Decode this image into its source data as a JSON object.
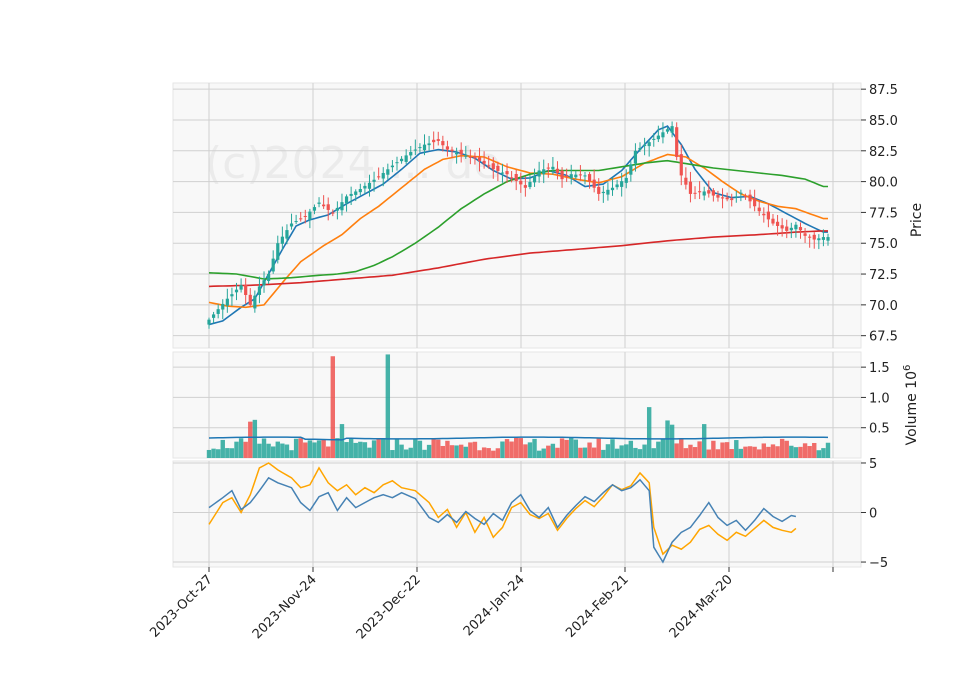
{
  "chart_data": {
    "type": "candlestick",
    "watermark": "(c)2024 ... de",
    "x_tick_labels": [
      "2023-Oct-27",
      "2023-Nov-24",
      "2023-Dec-22",
      "2024-Jan-24",
      "2024-Feb-21",
      "2024-Mar-20"
    ],
    "price_panel": {
      "ylabel": "Price",
      "ylim": [
        66.5,
        88.0
      ],
      "yticks": [
        67.5,
        70.0,
        72.5,
        75.0,
        77.5,
        80.0,
        82.5,
        85.0,
        87.5
      ],
      "ytick_labels": [
        "67.5",
        "70.0",
        "72.5",
        "75.0",
        "77.5",
        "80.0",
        "82.5",
        "85.0",
        "87.5"
      ],
      "up_color": "#26a69a",
      "down_color": "#ef5350",
      "close_anchors": [
        [
          0,
          68.8
        ],
        [
          4,
          70.5
        ],
        [
          7,
          71.6
        ],
        [
          9,
          70.0
        ],
        [
          11,
          71.5
        ],
        [
          13,
          72.5
        ],
        [
          15,
          75.0
        ],
        [
          18,
          76.6
        ],
        [
          21,
          77.2
        ],
        [
          24,
          78.3
        ],
        [
          27,
          77.4
        ],
        [
          30,
          78.8
        ],
        [
          33,
          79.4
        ],
        [
          37,
          80.4
        ],
        [
          40,
          81.3
        ],
        [
          44,
          82.4
        ],
        [
          47,
          83.0
        ],
        [
          50,
          83.3
        ],
        [
          52,
          82.6
        ],
        [
          55,
          82.2
        ],
        [
          58,
          81.9
        ],
        [
          62,
          81.0
        ],
        [
          65,
          80.6
        ],
        [
          69,
          79.5
        ],
        [
          72,
          80.9
        ],
        [
          75,
          81.2
        ],
        [
          77,
          80.2
        ],
        [
          79,
          80.6
        ],
        [
          82,
          80.5
        ],
        [
          85,
          79.0
        ],
        [
          88,
          79.5
        ],
        [
          91,
          80.3
        ],
        [
          93,
          82.5
        ],
        [
          96,
          83.2
        ],
        [
          99,
          84.0
        ],
        [
          101,
          84.5
        ],
        [
          102,
          82.0
        ],
        [
          103,
          80.5
        ],
        [
          105,
          79.0
        ],
        [
          108,
          79.2
        ],
        [
          111,
          78.7
        ],
        [
          114,
          78.5
        ],
        [
          116,
          79.1
        ],
        [
          118,
          78.4
        ],
        [
          120,
          77.6
        ],
        [
          123,
          76.6
        ],
        [
          126,
          76.0
        ],
        [
          128,
          76.5
        ],
        [
          130,
          75.6
        ],
        [
          132,
          75.3
        ],
        [
          134,
          75.5
        ]
      ],
      "ma_lines": [
        {
          "color": "#1f77b4",
          "anchors": [
            [
              0,
              68.4
            ],
            [
              3,
              68.7
            ],
            [
              7,
              69.8
            ],
            [
              10,
              70.5
            ],
            [
              13,
              72.5
            ],
            [
              16,
              74.5
            ],
            [
              19,
              76.4
            ],
            [
              22,
              76.9
            ],
            [
              26,
              77.3
            ],
            [
              30,
              78.2
            ],
            [
              34,
              79.0
            ],
            [
              38,
              79.8
            ],
            [
              42,
              81.0
            ],
            [
              46,
              82.3
            ],
            [
              50,
              82.6
            ],
            [
              54,
              82.4
            ],
            [
              58,
              81.9
            ],
            [
              62,
              80.9
            ],
            [
              66,
              80.2
            ],
            [
              70,
              80.3
            ],
            [
              74,
              80.9
            ],
            [
              78,
              80.5
            ],
            [
              82,
              79.6
            ],
            [
              86,
              79.8
            ],
            [
              90,
              80.9
            ],
            [
              94,
              82.6
            ],
            [
              98,
              84.2
            ],
            [
              100,
              84.5
            ],
            [
              103,
              83.0
            ],
            [
              106,
              81.0
            ],
            [
              110,
              79.1
            ],
            [
              114,
              78.7
            ],
            [
              118,
              78.8
            ],
            [
              122,
              78.2
            ],
            [
              126,
              77.4
            ],
            [
              130,
              76.6
            ],
            [
              134,
              75.9
            ]
          ]
        },
        {
          "color": "#ff7f0e",
          "anchors": [
            [
              0,
              70.2
            ],
            [
              4,
              69.9
            ],
            [
              8,
              69.8
            ],
            [
              12,
              70.0
            ],
            [
              16,
              71.8
            ],
            [
              20,
              73.5
            ],
            [
              25,
              74.8
            ],
            [
              29,
              75.7
            ],
            [
              33,
              77.0
            ],
            [
              37,
              78.0
            ],
            [
              42,
              79.5
            ],
            [
              47,
              81.0
            ],
            [
              51,
              81.8
            ],
            [
              55,
              82.1
            ],
            [
              60,
              82.0
            ],
            [
              65,
              81.2
            ],
            [
              70,
              80.7
            ],
            [
              75,
              80.6
            ],
            [
              80,
              80.2
            ],
            [
              85,
              79.9
            ],
            [
              90,
              80.4
            ],
            [
              95,
              81.5
            ],
            [
              100,
              82.2
            ],
            [
              104,
              82.0
            ],
            [
              108,
              81.1
            ],
            [
              112,
              80.0
            ],
            [
              116,
              79.0
            ],
            [
              120,
              78.4
            ],
            [
              124,
              78.0
            ],
            [
              128,
              77.8
            ],
            [
              134,
              77.0
            ]
          ]
        },
        {
          "color": "#2ca02c",
          "anchors": [
            [
              0,
              72.6
            ],
            [
              6,
              72.5
            ],
            [
              12,
              72.1
            ],
            [
              18,
              72.2
            ],
            [
              24,
              72.4
            ],
            [
              28,
              72.5
            ],
            [
              32,
              72.7
            ],
            [
              36,
              73.2
            ],
            [
              40,
              73.9
            ],
            [
              45,
              75.0
            ],
            [
              50,
              76.3
            ],
            [
              55,
              77.8
            ],
            [
              60,
              79.0
            ],
            [
              65,
              80.0
            ],
            [
              70,
              80.6
            ],
            [
              75,
              80.9
            ],
            [
              80,
              80.9
            ],
            [
              85,
              80.9
            ],
            [
              90,
              81.2
            ],
            [
              95,
              81.5
            ],
            [
              100,
              81.7
            ],
            [
              105,
              81.4
            ],
            [
              110,
              81.1
            ],
            [
              115,
              80.9
            ],
            [
              120,
              80.7
            ],
            [
              125,
              80.5
            ],
            [
              130,
              80.2
            ],
            [
              134,
              79.6
            ]
          ]
        },
        {
          "color": "#d62728",
          "anchors": [
            [
              0,
              71.5
            ],
            [
              10,
              71.6
            ],
            [
              20,
              71.8
            ],
            [
              30,
              72.1
            ],
            [
              40,
              72.4
            ],
            [
              50,
              73.0
            ],
            [
              60,
              73.7
            ],
            [
              70,
              74.2
            ],
            [
              80,
              74.5
            ],
            [
              90,
              74.8
            ],
            [
              100,
              75.2
            ],
            [
              110,
              75.5
            ],
            [
              120,
              75.7
            ],
            [
              128,
              75.9
            ],
            [
              134,
              76.0
            ]
          ]
        }
      ]
    },
    "volume_panel": {
      "ylabel": "Volume  10^6",
      "ylim": [
        0,
        1.75
      ],
      "yticks": [
        0.5,
        1.0,
        1.5
      ],
      "ytick_labels": [
        "0.5",
        "1.0",
        "1.5"
      ],
      "ma_color": "#1f77b4",
      "ma_value": 0.33,
      "spikes": [
        [
          9,
          0.6
        ],
        [
          10,
          0.63
        ],
        [
          27,
          1.68
        ],
        [
          29,
          0.56
        ],
        [
          39,
          1.71
        ],
        [
          96,
          0.84
        ],
        [
          100,
          0.62
        ],
        [
          101,
          0.55
        ],
        [
          108,
          0.56
        ]
      ]
    },
    "oscillator_panel": {
      "ylim": [
        -5.5,
        5.2
      ],
      "yticks": [
        -5,
        0,
        5
      ],
      "ytick_labels": [
        "−5",
        "0",
        "5"
      ],
      "blue_color": "#4682b4",
      "orange_color": "#ffa500",
      "blue_anchors": [
        [
          0,
          0.5
        ],
        [
          3,
          1.5
        ],
        [
          5,
          2.2
        ],
        [
          7,
          0.3
        ],
        [
          9,
          1.0
        ],
        [
          11,
          2.2
        ],
        [
          13,
          3.5
        ],
        [
          15,
          3.0
        ],
        [
          18,
          2.5
        ],
        [
          20,
          1.0
        ],
        [
          22,
          0.2
        ],
        [
          24,
          1.6
        ],
        [
          26,
          2.0
        ],
        [
          28,
          0.2
        ],
        [
          30,
          1.5
        ],
        [
          32,
          0.5
        ],
        [
          34,
          1.0
        ],
        [
          36,
          1.5
        ],
        [
          38,
          1.8
        ],
        [
          40,
          1.5
        ],
        [
          42,
          2.0
        ],
        [
          45,
          1.4
        ],
        [
          48,
          -0.5
        ],
        [
          50,
          -1.0
        ],
        [
          52,
          -0.2
        ],
        [
          54,
          -1.0
        ],
        [
          56,
          0.1
        ],
        [
          58,
          -0.6
        ],
        [
          60,
          -1.2
        ],
        [
          62,
          -0.1
        ],
        [
          64,
          -0.8
        ],
        [
          66,
          1.0
        ],
        [
          68,
          1.8
        ],
        [
          70,
          0.2
        ],
        [
          72,
          -0.5
        ],
        [
          74,
          0.5
        ],
        [
          76,
          -1.5
        ],
        [
          78,
          -0.3
        ],
        [
          80,
          0.7
        ],
        [
          82,
          1.6
        ],
        [
          84,
          1.1
        ],
        [
          86,
          2.0
        ],
        [
          88,
          2.8
        ],
        [
          90,
          2.2
        ],
        [
          92,
          2.5
        ],
        [
          94,
          3.3
        ],
        [
          96,
          2.2
        ],
        [
          97,
          -3.5
        ],
        [
          99,
          -5.0
        ],
        [
          101,
          -3.0
        ],
        [
          103,
          -2.0
        ],
        [
          105,
          -1.5
        ],
        [
          107,
          -0.3
        ],
        [
          109,
          1.0
        ],
        [
          111,
          -0.5
        ],
        [
          113,
          -1.3
        ],
        [
          115,
          -0.8
        ],
        [
          117,
          -1.8
        ],
        [
          119,
          -0.8
        ],
        [
          121,
          0.4
        ],
        [
          123,
          -0.4
        ],
        [
          125,
          -0.9
        ],
        [
          127,
          -0.3
        ],
        [
          128,
          -0.4
        ]
      ],
      "orange_anchors": [
        [
          0,
          -1.2
        ],
        [
          3,
          1.0
        ],
        [
          5,
          1.5
        ],
        [
          7,
          0.0
        ],
        [
          9,
          1.8
        ],
        [
          11,
          4.5
        ],
        [
          13,
          5.0
        ],
        [
          15,
          4.3
        ],
        [
          18,
          3.5
        ],
        [
          20,
          2.5
        ],
        [
          22,
          2.8
        ],
        [
          24,
          4.5
        ],
        [
          26,
          3.0
        ],
        [
          28,
          2.2
        ],
        [
          30,
          2.8
        ],
        [
          32,
          1.8
        ],
        [
          34,
          2.5
        ],
        [
          36,
          2.0
        ],
        [
          38,
          2.8
        ],
        [
          40,
          3.2
        ],
        [
          42,
          2.5
        ],
        [
          45,
          2.2
        ],
        [
          48,
          1.0
        ],
        [
          50,
          -0.5
        ],
        [
          52,
          0.3
        ],
        [
          54,
          -1.5
        ],
        [
          56,
          0.0
        ],
        [
          58,
          -2.0
        ],
        [
          60,
          -0.5
        ],
        [
          62,
          -2.5
        ],
        [
          64,
          -1.5
        ],
        [
          66,
          0.5
        ],
        [
          68,
          1.0
        ],
        [
          70,
          -0.2
        ],
        [
          72,
          -0.6
        ],
        [
          74,
          -0.1
        ],
        [
          76,
          -1.8
        ],
        [
          78,
          -0.6
        ],
        [
          80,
          0.4
        ],
        [
          82,
          1.2
        ],
        [
          84,
          0.6
        ],
        [
          86,
          1.6
        ],
        [
          88,
          2.8
        ],
        [
          90,
          2.3
        ],
        [
          92,
          2.7
        ],
        [
          94,
          4.0
        ],
        [
          96,
          3.0
        ],
        [
          97,
          -1.5
        ],
        [
          99,
          -4.2
        ],
        [
          101,
          -3.3
        ],
        [
          103,
          -3.7
        ],
        [
          105,
          -3.0
        ],
        [
          107,
          -1.7
        ],
        [
          109,
          -1.3
        ],
        [
          111,
          -2.2
        ],
        [
          113,
          -2.8
        ],
        [
          115,
          -2.0
        ],
        [
          117,
          -2.4
        ],
        [
          119,
          -1.6
        ],
        [
          121,
          -0.8
        ],
        [
          123,
          -1.5
        ],
        [
          125,
          -1.8
        ],
        [
          127,
          -2.0
        ],
        [
          128,
          -1.6
        ]
      ]
    }
  }
}
